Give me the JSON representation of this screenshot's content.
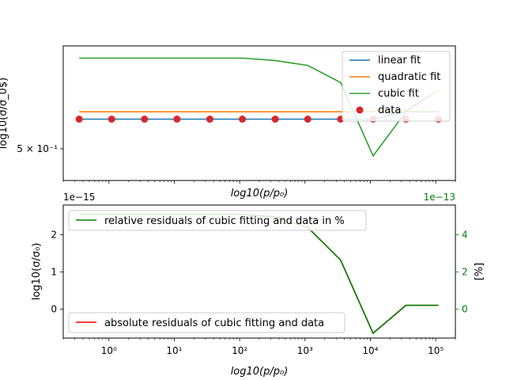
{
  "chart_data": [
    {
      "type": "line",
      "xlabel": "log10(p/p₀)",
      "ylabel": "log10(σ/σ_0$)",
      "x_scale": "log",
      "y_scale": "log",
      "ylim": [
        0.4975,
        0.503
      ],
      "ytick_label": "5 × 10⁻¹",
      "legend_position": "upper right",
      "x": [
        0.35,
        1.1,
        3.5,
        11,
        35,
        110,
        350,
        1100,
        3500,
        11000,
        35000,
        110000
      ],
      "series": [
        {
          "name": "linear fit",
          "color": "#1f77b4",
          "style": "line",
          "values": [
            0.5,
            0.5,
            0.5,
            0.5,
            0.5,
            0.5,
            0.5,
            0.5,
            0.5,
            0.5,
            0.5003,
            0.5012
          ]
        },
        {
          "name": "quadratic fit",
          "color": "#ff7f0e",
          "style": "line",
          "values": [
            0.5003,
            0.5003,
            0.5003,
            0.5003,
            0.5003,
            0.5003,
            0.5003,
            0.5003,
            0.5003,
            0.5003,
            0.50035,
            0.5012
          ]
        },
        {
          "name": "cubic fit",
          "color": "#2ca02c",
          "style": "line",
          "values": [
            0.5025,
            0.5025,
            0.5025,
            0.5025,
            0.5025,
            0.5025,
            0.5024,
            0.5022,
            0.5015,
            0.4985,
            0.5003,
            0.5003
          ]
        },
        {
          "name": "data",
          "color": "#d62728",
          "style": "markers",
          "values": [
            0.5,
            0.5,
            0.5,
            0.5,
            0.5,
            0.5,
            0.5,
            0.5,
            0.5,
            0.5,
            0.5,
            0.5
          ]
        }
      ]
    },
    {
      "type": "line",
      "xlabel": "log10(p/p₀)",
      "ylabel": "log10(σ/σ₀)",
      "y2label": "[%]",
      "x_scale": "log",
      "ylim": [
        -0.78,
        2.8
      ],
      "y_offset_label": "1e−15",
      "y2_offset_label": "1e−13",
      "yticks": [
        0,
        1,
        2
      ],
      "y2ticks": [
        0,
        2,
        4
      ],
      "xticks": [
        1,
        10,
        100,
        1000,
        10000,
        100000
      ],
      "xtick_labels": [
        "10⁰",
        "10¹",
        "10²",
        "10³",
        "10⁴",
        "10⁵"
      ],
      "x": [
        0.35,
        1.1,
        3.5,
        11,
        35,
        110,
        350,
        1100,
        3500,
        11000,
        35000,
        110000
      ],
      "series": [
        {
          "name": "absolute residuals of cubic fitting and data",
          "color": "#ff0000",
          "axis": "left",
          "legend_position": "lower left",
          "values": [
            2.55,
            2.55,
            2.55,
            2.55,
            2.55,
            2.55,
            2.48,
            2.2,
            1.32,
            -0.65,
            0.1,
            0.1
          ]
        },
        {
          "name": "relative residuals of cubic fitting and data in %",
          "color": "#008000",
          "axis": "right",
          "legend_position": "upper left",
          "values": [
            5.1,
            5.1,
            5.1,
            5.1,
            5.1,
            5.1,
            4.96,
            4.4,
            2.64,
            -1.3,
            0.2,
            0.2
          ]
        }
      ]
    }
  ]
}
